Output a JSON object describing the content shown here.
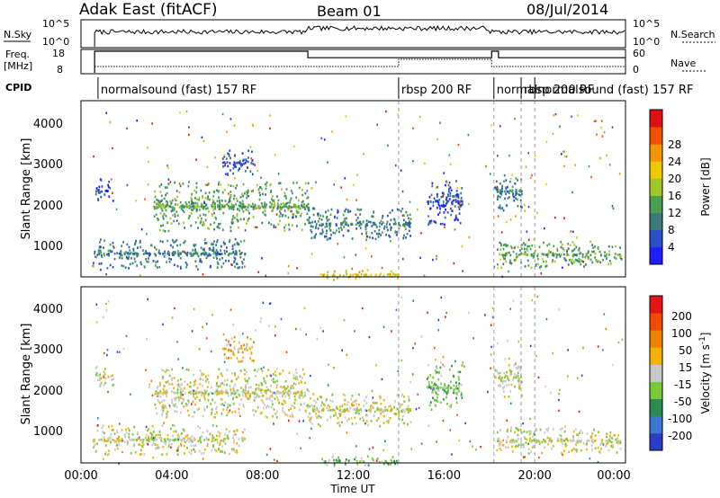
{
  "header": {
    "station": "Adak East (fitACF)",
    "beam": "Beam 01",
    "date": "08/Jul/2014"
  },
  "strips": {
    "nsky_label": "N.Sky",
    "nsky_ticks": [
      "10^5",
      "10^0"
    ],
    "nsearch_label": "N.Search",
    "nsearch_ticks": [
      "10^5",
      "10^0"
    ],
    "freq_label": "Freq.",
    "freq_unit": "[MHz]",
    "freq_ticks": [
      "18",
      "8"
    ],
    "nave_label": "Nave",
    "nave_ticks": [
      "60",
      "0"
    ],
    "cpid_label": "CPID",
    "cpid_segments": [
      {
        "text": "normalsound (fast)  157  RF",
        "start": 0.75,
        "end": 14.0
      },
      {
        "text": "rbsp  200  RF",
        "start": 14.0,
        "end": 18.2
      },
      {
        "text": "normal",
        "start": 18.2,
        "end": 19.4
      },
      {
        "text": "rbsp  200  RF",
        "start": 19.4,
        "end": 20.0
      },
      {
        "text": "normalsound (fast)  157  RF",
        "start": 20.0,
        "end": 24.0
      }
    ]
  },
  "chart_data": [
    {
      "type": "heatmap",
      "name": "power",
      "ylabel": "Slant Range [km]",
      "xlim": [
        0,
        24
      ],
      "ylim": [
        180,
        4500
      ],
      "yticks": [
        "1000",
        "2000",
        "3000",
        "4000"
      ],
      "colorbar_label": "Power [dB]",
      "colorbar_ticks": [
        "4",
        "8",
        "12",
        "16",
        "20",
        "24",
        "28"
      ],
      "colorbar_colors": [
        "#1e1eff",
        "#2850c8",
        "#3a7a7a",
        "#48a050",
        "#a0c828",
        "#f0c800",
        "#f09600",
        "#f05000",
        "#e01010"
      ],
      "echo_bands": [
        {
          "x_start": 0.6,
          "x_end": 1.4,
          "range_low": 2150,
          "range_high": 2500,
          "level": 1
        },
        {
          "x_start": 3.2,
          "x_end": 10.0,
          "range_low": 1550,
          "range_high": 2300,
          "level": 3
        },
        {
          "x_start": 0.5,
          "x_end": 7.2,
          "range_low": 550,
          "range_high": 1000,
          "level": 2
        },
        {
          "x_start": 10.0,
          "x_end": 14.5,
          "range_low": 1250,
          "range_high": 1750,
          "level": 2
        },
        {
          "x_start": 6.2,
          "x_end": 7.6,
          "range_low": 2800,
          "range_high": 3200,
          "level": 1
        },
        {
          "x_start": 15.2,
          "x_end": 16.8,
          "range_low": 1700,
          "range_high": 2400,
          "level": 1
        },
        {
          "x_start": 18.2,
          "x_end": 19.4,
          "range_low": 2000,
          "range_high": 2600,
          "level": 2
        },
        {
          "x_start": 18.3,
          "x_end": 23.8,
          "range_low": 550,
          "range_high": 950,
          "level": 3
        },
        {
          "x_start": 10.5,
          "x_end": 14.0,
          "range_low": 180,
          "range_high": 330,
          "level": 5
        }
      ]
    },
    {
      "type": "heatmap",
      "name": "velocity",
      "xlabel": "Time UT",
      "ylabel": "Slant Range [km]",
      "xlim": [
        0,
        24
      ],
      "ylim": [
        180,
        4500
      ],
      "xticks": [
        "00:00",
        "04:00",
        "08:00",
        "12:00",
        "16:00",
        "20:00",
        "00:00"
      ],
      "yticks": [
        "1000",
        "2000",
        "3000",
        "4000"
      ],
      "colorbar_label": "Velocity [m s^-1]",
      "colorbar_ticks": [
        "200",
        "100",
        "50",
        "15",
        "-15",
        "-50",
        "-100",
        "-200"
      ],
      "colorbar_colors": [
        "#2a3cc8",
        "#3c78d2",
        "#2a8c50",
        "#78c83c",
        "#c8c8c8",
        "#f0b400",
        "#f08200",
        "#f04b00",
        "#e61414"
      ],
      "echo_bands": [
        {
          "x_start": 0.6,
          "x_end": 1.4,
          "range_low": 2150,
          "range_high": 2500,
          "level": 4
        },
        {
          "x_start": 3.2,
          "x_end": 10.0,
          "range_low": 1550,
          "range_high": 2300,
          "level": 4
        },
        {
          "x_start": 0.5,
          "x_end": 7.2,
          "range_low": 550,
          "range_high": 1000,
          "level": 4
        },
        {
          "x_start": 10.0,
          "x_end": 14.5,
          "range_low": 1250,
          "range_high": 1750,
          "level": 4
        },
        {
          "x_start": 6.2,
          "x_end": 7.6,
          "range_low": 2800,
          "range_high": 3200,
          "level": 5
        },
        {
          "x_start": 15.2,
          "x_end": 16.8,
          "range_low": 1700,
          "range_high": 2400,
          "level": 3
        },
        {
          "x_start": 18.2,
          "x_end": 19.4,
          "range_low": 2000,
          "range_high": 2600,
          "level": 4
        },
        {
          "x_start": 18.3,
          "x_end": 23.8,
          "range_low": 550,
          "range_high": 950,
          "level": 4
        },
        {
          "x_start": 10.5,
          "x_end": 14.0,
          "range_low": 180,
          "range_high": 330,
          "level": 3
        }
      ]
    }
  ]
}
